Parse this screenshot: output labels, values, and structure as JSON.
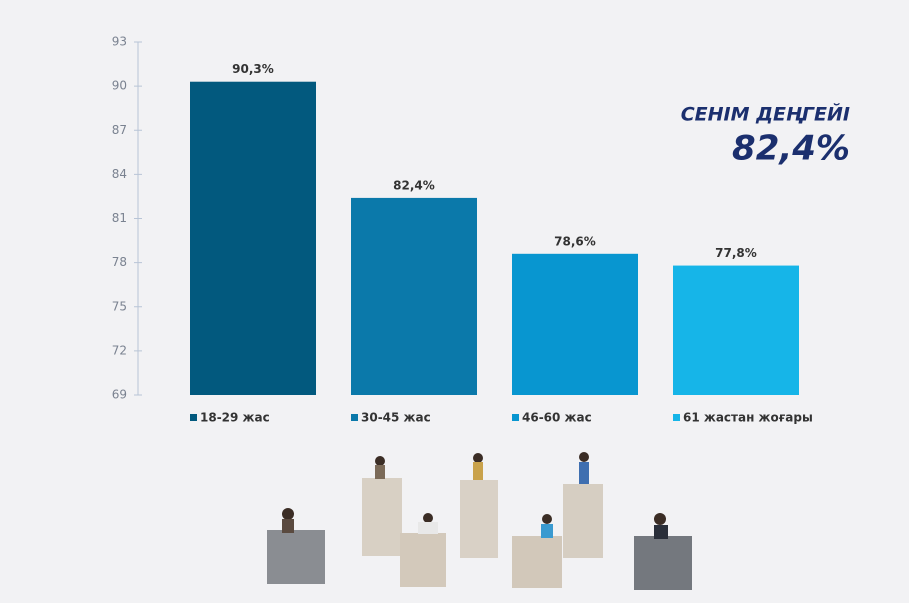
{
  "chart_data": {
    "type": "bar",
    "categories": [
      "18-29 жас",
      "30-45 жас",
      "46-60 жас",
      "61 жастан жоғары"
    ],
    "values": [
      90.3,
      82.4,
      78.6,
      77.8
    ],
    "value_labels": [
      "90,3%",
      "82,4%",
      "78,6%",
      "77,8%"
    ],
    "colors": [
      "#02597e",
      "#0b79aa",
      "#0896d0",
      "#16b5e8"
    ],
    "ylim": [
      69,
      93
    ],
    "yticks": [
      69,
      72,
      75,
      78,
      81,
      84,
      87,
      90,
      93
    ],
    "annotation": {
      "title": "СЕНІМ ДЕҢГЕЙІ",
      "value": "82,4%"
    }
  }
}
